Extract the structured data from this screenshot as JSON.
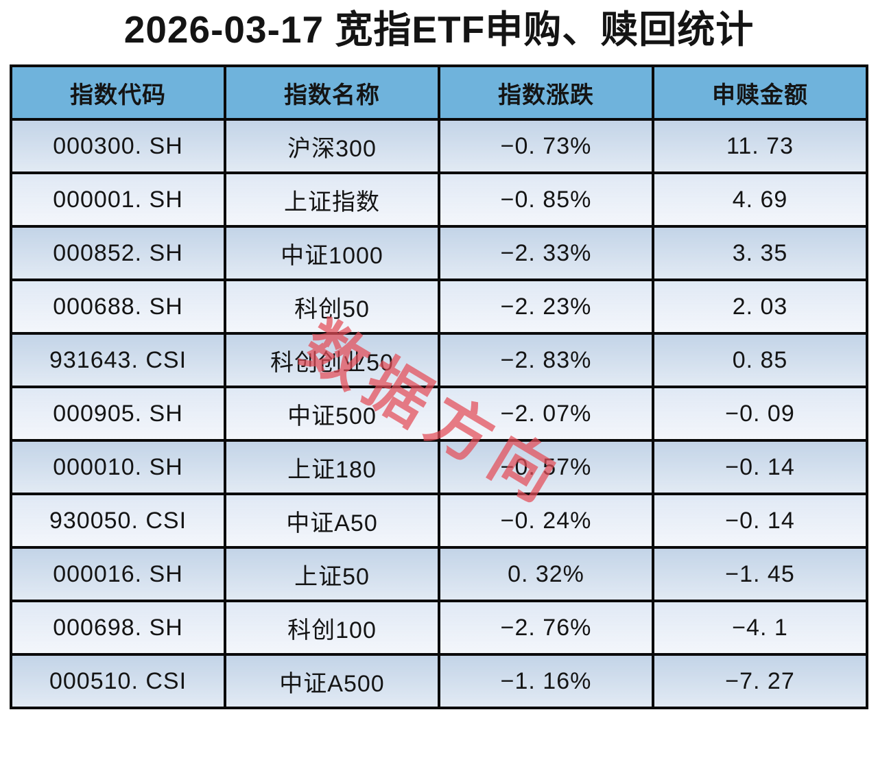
{
  "title": "2026-03-17 宽指ETF申购、赎回统计",
  "watermark": "数据方向",
  "colors": {
    "header_bg": "#6fb3dc",
    "row_odd": "#d2dfee",
    "row_even": "#e8eef7",
    "border": "#0a0a0a",
    "watermark": "#e44d58",
    "text": "#141414"
  },
  "table": {
    "columns": [
      "指数代码",
      "指数名称",
      "指数涨跌",
      "申赎金额"
    ],
    "rows": [
      [
        "000300. SH",
        "沪深300",
        "−0. 73%",
        "11. 73"
      ],
      [
        "000001. SH",
        "上证指数",
        "−0. 85%",
        "4. 69"
      ],
      [
        "000852. SH",
        "中证1000",
        "−2. 33%",
        "3. 35"
      ],
      [
        "000688. SH",
        "科创50",
        "−2. 23%",
        "2. 03"
      ],
      [
        "931643. CSI",
        "科创创业50",
        "−2. 83%",
        "0. 85"
      ],
      [
        "000905. SH",
        "中证500",
        "−2. 07%",
        "−0. 09"
      ],
      [
        "000010. SH",
        "上证180",
        "−0. 57%",
        "−0. 14"
      ],
      [
        "930050. CSI",
        "中证A50",
        "−0. 24%",
        "−0. 14"
      ],
      [
        "000016. SH",
        "上证50",
        "0. 32%",
        "−1. 45"
      ],
      [
        "000698. SH",
        "科创100",
        "−2. 76%",
        "−4. 1"
      ],
      [
        "000510. CSI",
        "中证A500",
        "−1. 16%",
        "−7. 27"
      ]
    ]
  }
}
